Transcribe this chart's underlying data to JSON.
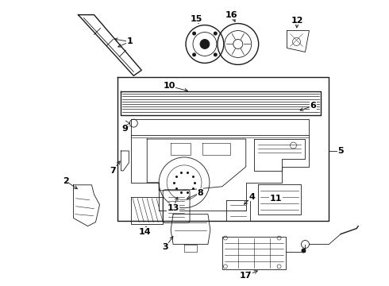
{
  "bg_color": "#ffffff",
  "line_color": "#1a1a1a",
  "lw_main": 1.0,
  "lw_thin": 0.6,
  "label_fs": 8,
  "label_fw": "bold"
}
